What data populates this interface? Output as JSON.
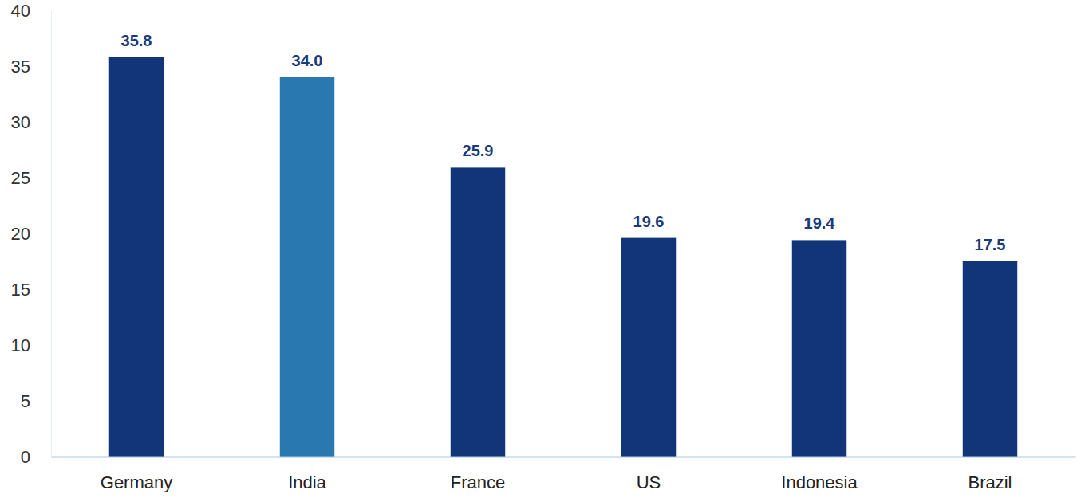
{
  "chart_data": {
    "type": "bar",
    "categories": [
      "Germany",
      "India",
      "France",
      "US",
      "Indonesia",
      "Brazil"
    ],
    "values": [
      35.8,
      34.0,
      25.9,
      19.6,
      19.4,
      17.5
    ],
    "value_labels": [
      "35.8",
      "34.0",
      "25.9",
      "19.6",
      "19.4",
      "17.5"
    ],
    "colors": [
      "#12357a",
      "#2a78b0",
      "#12357a",
      "#12357a",
      "#12357a",
      "#12357a"
    ],
    "ylim": [
      0,
      40
    ],
    "yticks": [
      0,
      5,
      10,
      15,
      20,
      25,
      30,
      35,
      40
    ],
    "grid": false,
    "data_labels": true
  }
}
